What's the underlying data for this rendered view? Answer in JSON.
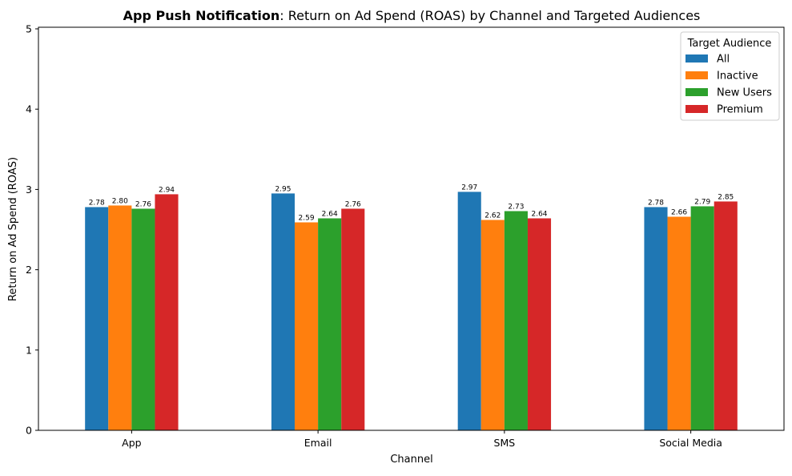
{
  "chart_data": {
    "type": "bar",
    "title_bold": "App Push Notification",
    "title_rest": ": Return on Ad Spend (ROAS) by Channel and Targeted Audiences",
    "xlabel": "Channel",
    "ylabel": "Return on Ad Spend (ROAS)",
    "ylim": [
      0,
      5.02
    ],
    "yticks": [
      "0",
      "1",
      "2",
      "3",
      "4",
      "5"
    ],
    "categories": [
      "App",
      "Email",
      "SMS",
      "Social Media"
    ],
    "legend": {
      "title": "Target Audience",
      "placement": "top-right"
    },
    "grid": false,
    "series": [
      {
        "name": "All",
        "color": "#1f77b4",
        "values": [
          2.78,
          2.95,
          2.97,
          2.78
        ],
        "labels": [
          "2.78",
          "2.95",
          "2.97",
          "2.78"
        ]
      },
      {
        "name": "Inactive",
        "color": "#ff7f0e",
        "values": [
          2.8,
          2.59,
          2.62,
          2.66
        ],
        "labels": [
          "2.80",
          "2.59",
          "2.62",
          "2.66"
        ]
      },
      {
        "name": "New Users",
        "color": "#2ca02c",
        "values": [
          2.76,
          2.64,
          2.73,
          2.79
        ],
        "labels": [
          "2.76",
          "2.64",
          "2.73",
          "2.79"
        ]
      },
      {
        "name": "Premium",
        "color": "#d62728",
        "values": [
          2.94,
          2.76,
          2.64,
          2.85
        ],
        "labels": [
          "2.94",
          "2.76",
          "2.64",
          "2.85"
        ]
      }
    ]
  }
}
